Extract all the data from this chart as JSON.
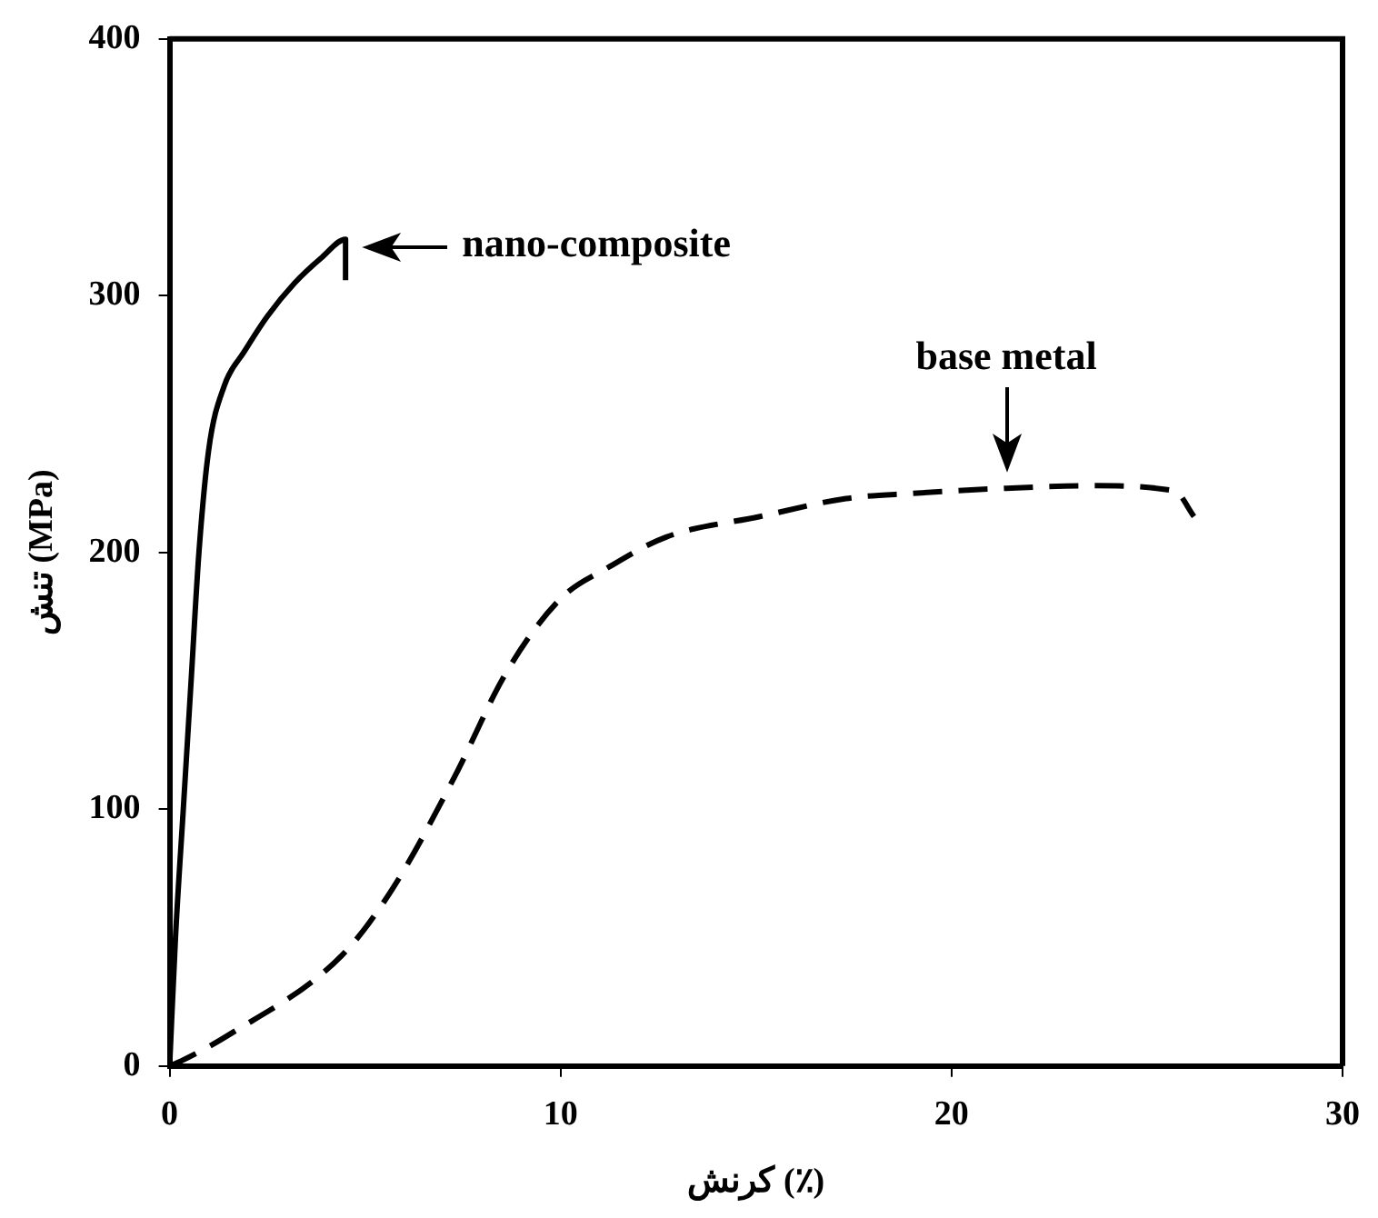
{
  "chart_data": {
    "type": "line",
    "xlabel": "کرنش (٪)",
    "ylabel": "تنش (MPa)",
    "xlim": [
      0,
      30
    ],
    "xticks": [
      0,
      10,
      20,
      30
    ],
    "ylim": [
      0,
      400
    ],
    "yticks": [
      0,
      100,
      200,
      300,
      400
    ],
    "grid": false,
    "legend": false,
    "marker": "none",
    "series": [
      {
        "color": "#000000",
        "line_style": "solid",
        "x": [
          0,
          0.15,
          0.35,
          0.55,
          0.75,
          1.0,
          1.4,
          1.9,
          2.5,
          3.2,
          3.9,
          4.5,
          4.5
        ],
        "values": [
          0,
          50,
          100,
          150,
          200,
          240,
          265,
          278,
          292,
          305,
          315,
          322,
          306
        ]
      },
      {
        "color": "#000000",
        "line_style": "dashed",
        "x": [
          0,
          0.3,
          1.5,
          4.4,
          5.7,
          7.3,
          8.6,
          10,
          11.2,
          12.7,
          15.1,
          17.3,
          19,
          21.4,
          23.5,
          25.7,
          26.2
        ],
        "values": [
          0,
          2,
          12,
          43,
          69,
          113,
          153,
          182,
          194,
          206,
          214,
          221,
          223,
          225,
          226,
          224,
          214
        ]
      }
    ],
    "annotations": [
      {
        "text": "nano-composite",
        "x": 4.5,
        "y": 322
      },
      {
        "text": "base metal",
        "x": 21.4,
        "y": 225
      }
    ]
  }
}
